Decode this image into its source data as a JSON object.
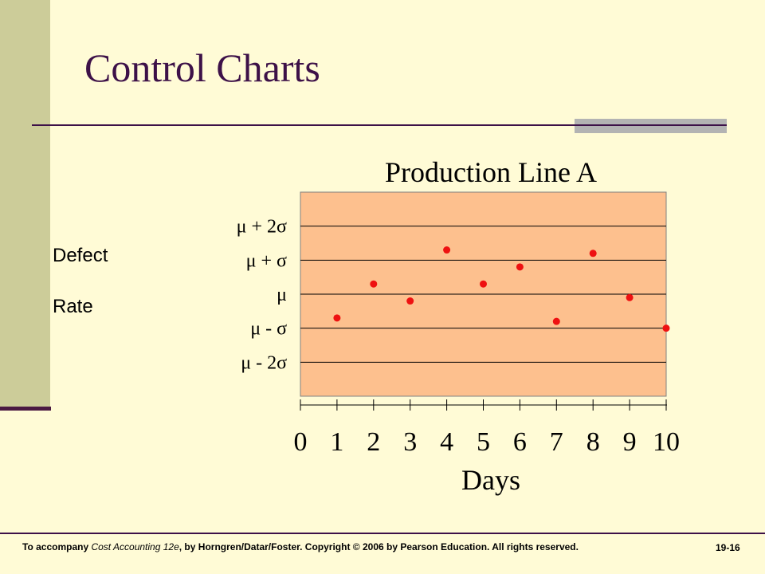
{
  "slide": {
    "title": "Control Charts",
    "y_label_line1": "Defect",
    "y_label_line2": "Rate",
    "footer": {
      "prefix": "To accompany ",
      "book": "Cost Accounting 12e",
      "suffix": ", by Horngren/Datar/Foster.  Copyright © 2006 by Pearson Education.  All rights reserved.",
      "page": "19-16"
    },
    "colors": {
      "background": "#fffbd6",
      "sidebar": "#cccc99",
      "title": "#3d1148",
      "plot_area": "#fdc08e",
      "points": "#ee1111"
    }
  },
  "chart_data": {
    "type": "scatter",
    "title": "Production Line A",
    "xlabel": "Days",
    "x_ticks": [
      "0",
      "1",
      "2",
      "3",
      "4",
      "5",
      "6",
      "7",
      "8",
      "9",
      "10"
    ],
    "xlim": [
      0,
      10
    ],
    "ylim": [
      -3,
      3
    ],
    "y_levels": [
      {
        "value": 2,
        "label": "μ + 2σ"
      },
      {
        "value": 1,
        "label": "μ + σ"
      },
      {
        "value": 0,
        "label": "μ"
      },
      {
        "value": -1,
        "label": "μ - σ"
      },
      {
        "value": -2,
        "label": "μ - 2σ"
      }
    ],
    "grid": true,
    "points": [
      {
        "x": 1,
        "y": -0.7
      },
      {
        "x": 2,
        "y": 0.3
      },
      {
        "x": 3,
        "y": -0.2
      },
      {
        "x": 4,
        "y": 1.3
      },
      {
        "x": 5,
        "y": 0.3
      },
      {
        "x": 6,
        "y": 0.8
      },
      {
        "x": 7,
        "y": -0.8
      },
      {
        "x": 8,
        "y": 1.2
      },
      {
        "x": 9,
        "y": -0.1
      },
      {
        "x": 10,
        "y": -1.0
      }
    ]
  }
}
